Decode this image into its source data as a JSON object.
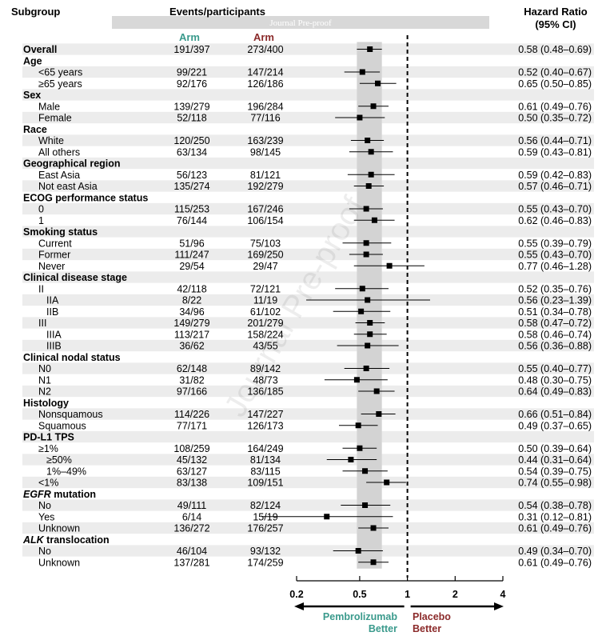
{
  "header": {
    "subgroup": "Subgroup",
    "events": "Events/participants",
    "arm_left": "Arm",
    "arm_right": "Arm",
    "hr_line1": "Hazard Ratio",
    "hr_line2": "(95% CI)",
    "watermark_banner": "Journal Pre-proof",
    "watermark_diagonal": "Journal Pre-proof"
  },
  "colors": {
    "arm_left": "#3a9a8c",
    "arm_right": "#8b2a2a",
    "zebra": "#ececec",
    "reference_band": "#d3d3d3"
  },
  "chart_data": {
    "type": "forest",
    "x_scale": "log",
    "xlim": [
      0.2,
      4
    ],
    "x_ticks": [
      0.2,
      0.5,
      1,
      2,
      4
    ],
    "x_tick_labels": [
      "0.2",
      "0.5",
      "1",
      "2",
      "4"
    ],
    "reference_line": 1,
    "overall_band": [
      0.48,
      0.69
    ],
    "left_label": [
      "Pembrolizumab",
      "Better"
    ],
    "right_label": [
      "Placebo",
      "Better"
    ],
    "rows": [
      {
        "label": "Overall",
        "kind": "overall",
        "left": "191/397",
        "right": "273/400",
        "hr": 0.58,
        "lo": 0.48,
        "hi": 0.69,
        "ci_text": "0.58 (0.48–0.69)"
      },
      {
        "label": "Age",
        "kind": "header"
      },
      {
        "label": "<65 years",
        "kind": "row",
        "indent": 1,
        "left": "99/221",
        "right": "147/214",
        "hr": 0.52,
        "lo": 0.4,
        "hi": 0.67,
        "ci_text": "0.52 (0.40–0.67)"
      },
      {
        "label": "≥65 years",
        "kind": "row",
        "indent": 1,
        "left": "92/176",
        "right": "126/186",
        "hr": 0.65,
        "lo": 0.5,
        "hi": 0.85,
        "ci_text": "0.65 (0.50–0.85)"
      },
      {
        "label": "Sex",
        "kind": "header"
      },
      {
        "label": "Male",
        "kind": "row",
        "indent": 1,
        "left": "139/279",
        "right": "196/284",
        "hr": 0.61,
        "lo": 0.49,
        "hi": 0.76,
        "ci_text": "0.61 (0.49–0.76)"
      },
      {
        "label": "Female",
        "kind": "row",
        "indent": 1,
        "left": "52/118",
        "right": "77/116",
        "hr": 0.5,
        "lo": 0.35,
        "hi": 0.72,
        "ci_text": "0.50 (0.35–0.72)"
      },
      {
        "label": "Race",
        "kind": "header"
      },
      {
        "label": "White",
        "kind": "row",
        "indent": 1,
        "left": "120/250",
        "right": "163/239",
        "hr": 0.56,
        "lo": 0.44,
        "hi": 0.71,
        "ci_text": "0.56 (0.44–0.71)"
      },
      {
        "label": "All others",
        "kind": "row",
        "indent": 1,
        "left": "63/134",
        "right": "98/145",
        "hr": 0.59,
        "lo": 0.43,
        "hi": 0.81,
        "ci_text": "0.59 (0.43–0.81)"
      },
      {
        "label": "Geographical region",
        "kind": "header"
      },
      {
        "label": "East Asia",
        "kind": "row",
        "indent": 1,
        "left": "56/123",
        "right": "81/121",
        "hr": 0.59,
        "lo": 0.42,
        "hi": 0.83,
        "ci_text": "0.59 (0.42–0.83)"
      },
      {
        "label": "Not east Asia",
        "kind": "row",
        "indent": 1,
        "left": "135/274",
        "right": "192/279",
        "hr": 0.57,
        "lo": 0.46,
        "hi": 0.71,
        "ci_text": "0.57 (0.46–0.71)"
      },
      {
        "label": "ECOG performance status",
        "kind": "header"
      },
      {
        "label": "0",
        "kind": "row",
        "indent": 1,
        "left": "115/253",
        "right": "167/246",
        "hr": 0.55,
        "lo": 0.43,
        "hi": 0.7,
        "ci_text": "0.55 (0.43–0.70)"
      },
      {
        "label": "1",
        "kind": "row",
        "indent": 1,
        "left": "76/144",
        "right": "106/154",
        "hr": 0.62,
        "lo": 0.46,
        "hi": 0.83,
        "ci_text": "0.62 (0.46–0.83)"
      },
      {
        "label": "Smoking status",
        "kind": "header"
      },
      {
        "label": "Current",
        "kind": "row",
        "indent": 1,
        "left": "51/96",
        "right": "75/103",
        "hr": 0.55,
        "lo": 0.39,
        "hi": 0.79,
        "ci_text": "0.55 (0.39–0.79)"
      },
      {
        "label": "Former",
        "kind": "row",
        "indent": 1,
        "left": "111/247",
        "right": "169/250",
        "hr": 0.55,
        "lo": 0.43,
        "hi": 0.7,
        "ci_text": "0.55 (0.43–0.70)"
      },
      {
        "label": "Never",
        "kind": "row",
        "indent": 1,
        "left": "29/54",
        "right": "29/47",
        "hr": 0.77,
        "lo": 0.46,
        "hi": 1.28,
        "ci_text": "0.77 (0.46–1.28)"
      },
      {
        "label": "Clinical disease stage",
        "kind": "header"
      },
      {
        "label": "II",
        "kind": "row",
        "indent": 1,
        "left": "42/118",
        "right": "72/121",
        "hr": 0.52,
        "lo": 0.35,
        "hi": 0.76,
        "ci_text": "0.52 (0.35–0.76)"
      },
      {
        "label": "IIA",
        "kind": "row",
        "indent": 2,
        "left": "8/22",
        "right": "11/19",
        "hr": 0.56,
        "lo": 0.23,
        "hi": 1.39,
        "ci_text": "0.56 (0.23–1.39)"
      },
      {
        "label": "IIB",
        "kind": "row",
        "indent": 2,
        "left": "34/96",
        "right": "61/102",
        "hr": 0.51,
        "lo": 0.34,
        "hi": 0.78,
        "ci_text": "0.51 (0.34–0.78)"
      },
      {
        "label": "III",
        "kind": "row",
        "indent": 1,
        "left": "149/279",
        "right": "201/279",
        "hr": 0.58,
        "lo": 0.47,
        "hi": 0.72,
        "ci_text": "0.58 (0.47–0.72)"
      },
      {
        "label": "IIIA",
        "kind": "row",
        "indent": 2,
        "left": "113/217",
        "right": "158/224",
        "hr": 0.58,
        "lo": 0.46,
        "hi": 0.74,
        "ci_text": "0.58 (0.46–0.74)"
      },
      {
        "label": "IIIB",
        "kind": "row",
        "indent": 2,
        "left": "36/62",
        "right": "43/55",
        "hr": 0.56,
        "lo": 0.36,
        "hi": 0.88,
        "ci_text": "0.56 (0.36–0.88)"
      },
      {
        "label": "Clinical nodal status",
        "kind": "header"
      },
      {
        "label": "N0",
        "kind": "row",
        "indent": 1,
        "left": "62/148",
        "right": "89/142",
        "hr": 0.55,
        "lo": 0.4,
        "hi": 0.77,
        "ci_text": "0.55 (0.40–0.77)"
      },
      {
        "label": "N1",
        "kind": "row",
        "indent": 1,
        "left": "31/82",
        "right": "48/73",
        "hr": 0.48,
        "lo": 0.3,
        "hi": 0.75,
        "ci_text": "0.48 (0.30–0.75)"
      },
      {
        "label": "N2",
        "kind": "row",
        "indent": 1,
        "left": "97/166",
        "right": "136/185",
        "hr": 0.64,
        "lo": 0.49,
        "hi": 0.83,
        "ci_text": "0.64 (0.49–0.83)"
      },
      {
        "label": "Histology",
        "kind": "header"
      },
      {
        "label": "Nonsquamous",
        "kind": "row",
        "indent": 1,
        "left": "114/226",
        "right": "147/227",
        "hr": 0.66,
        "lo": 0.51,
        "hi": 0.84,
        "ci_text": "0.66 (0.51–0.84)"
      },
      {
        "label": "Squamous",
        "kind": "row",
        "indent": 1,
        "left": "77/171",
        "right": "126/173",
        "hr": 0.49,
        "lo": 0.37,
        "hi": 0.65,
        "ci_text": "0.49 (0.37–0.65)"
      },
      {
        "label": "PD-L1 TPS",
        "kind": "header"
      },
      {
        "label": "≥1%",
        "kind": "row",
        "indent": 1,
        "left": "108/259",
        "right": "164/249",
        "hr": 0.5,
        "lo": 0.39,
        "hi": 0.64,
        "ci_text": "0.50 (0.39–0.64)"
      },
      {
        "label": "≥50%",
        "kind": "row",
        "indent": 2,
        "left": "45/132",
        "right": "81/134",
        "hr": 0.44,
        "lo": 0.31,
        "hi": 0.64,
        "ci_text": "0.44 (0.31–0.64)"
      },
      {
        "label": "1%–49%",
        "kind": "row",
        "indent": 2,
        "left": "63/127",
        "right": "83/115",
        "hr": 0.54,
        "lo": 0.39,
        "hi": 0.75,
        "ci_text": "0.54 (0.39–0.75)"
      },
      {
        "label": "<1%",
        "kind": "row",
        "indent": 1,
        "left": "83/138",
        "right": "109/151",
        "hr": 0.74,
        "lo": 0.55,
        "hi": 0.98,
        "ci_text": "0.74 (0.55–0.98)"
      },
      {
        "label": "EGFR",
        "suffix": " mutation",
        "kind": "header",
        "italic": true
      },
      {
        "label": "No",
        "kind": "row",
        "indent": 1,
        "left": "49/111",
        "right": "82/124",
        "hr": 0.54,
        "lo": 0.38,
        "hi": 0.78,
        "ci_text": "0.54 (0.38–0.78)"
      },
      {
        "label": "Yes",
        "kind": "row",
        "indent": 1,
        "left": "6/14",
        "right": "15/19",
        "hr": 0.31,
        "lo": 0.12,
        "hi": 0.81,
        "ci_text": "0.31 (0.12–0.81)"
      },
      {
        "label": "Unknown",
        "kind": "row",
        "indent": 1,
        "left": "136/272",
        "right": "176/257",
        "hr": 0.61,
        "lo": 0.49,
        "hi": 0.76,
        "ci_text": "0.61 (0.49–0.76)"
      },
      {
        "label": "ALK",
        "suffix": " translocation",
        "kind": "header",
        "italic": true
      },
      {
        "label": "No",
        "kind": "row",
        "indent": 1,
        "left": "46/104",
        "right": "93/132",
        "hr": 0.49,
        "lo": 0.34,
        "hi": 0.7,
        "ci_text": "0.49 (0.34–0.70)"
      },
      {
        "label": "Unknown",
        "kind": "row",
        "indent": 1,
        "left": "137/281",
        "right": "174/259",
        "hr": 0.61,
        "lo": 0.49,
        "hi": 0.76,
        "ci_text": "0.61 (0.49–0.76)"
      }
    ]
  }
}
